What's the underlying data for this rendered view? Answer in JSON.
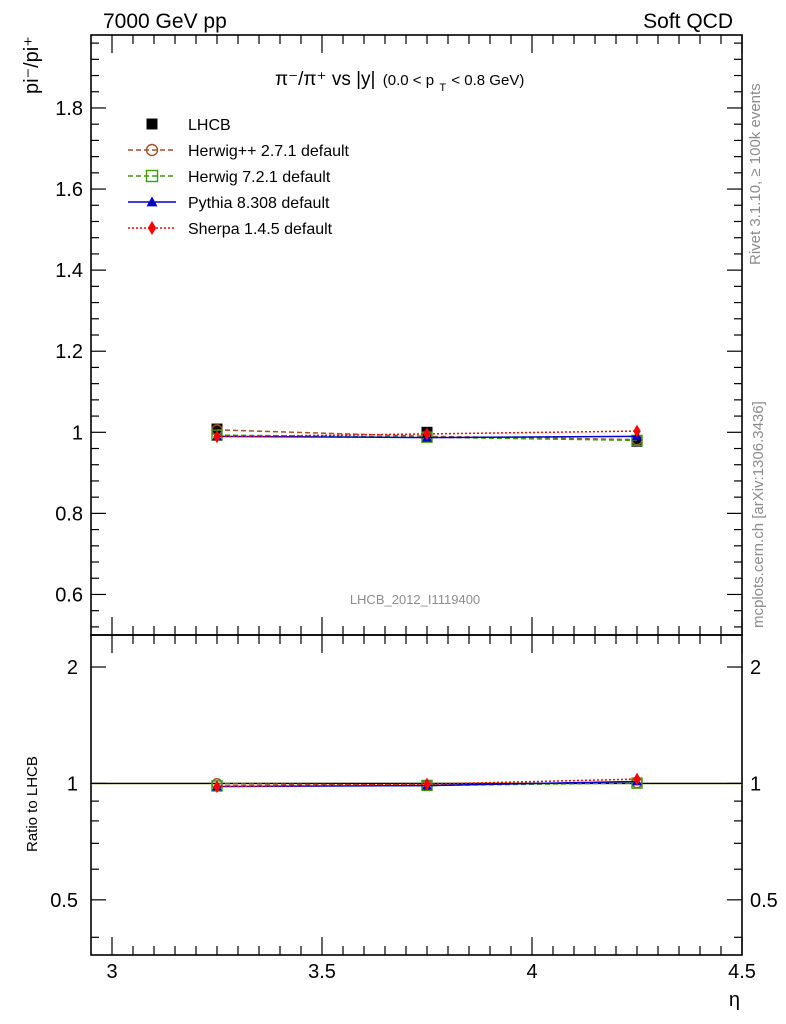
{
  "header": {
    "left": "7000 GeV pp",
    "right": "Soft QCD"
  },
  "side_labels": {
    "top": "Rivet 3.1.10, ≥ 100k events",
    "bottom": "mcplots.cern.ch [arXiv:1306.3436]"
  },
  "watermark": "LHCB_2012_I1119400",
  "legend": [
    {
      "label": "LHCB",
      "color": "#000000",
      "marker": "square-filled",
      "dash": ""
    },
    {
      "label": "Herwig++ 2.7.1 default",
      "color": "#a0522d",
      "marker": "circle-open",
      "dash": "5,3"
    },
    {
      "label": "Herwig 7.2.1 default",
      "color": "#3d9912",
      "marker": "square-open",
      "dash": "5,3"
    },
    {
      "label": "Pythia 8.308 default",
      "color": "#0000cc",
      "marker": "triangle-filled",
      "dash": ""
    },
    {
      "label": "Sherpa 1.4.5 default",
      "color": "#ff0000",
      "marker": "diamond-filled",
      "dash": "2,2"
    }
  ],
  "chart_data": [
    {
      "type": "line",
      "title_parts": {
        "main": "π⁻/π⁺ vs |y|",
        "cut_open": "(0.0 < p",
        "cut_sub": "T",
        "cut_close": " < 0.8 GeV)"
      },
      "ylabel": "pi⁻/pi⁺",
      "xlabel": "η",
      "xlim": [
        2.95,
        4.5
      ],
      "ylim": [
        0.5,
        1.98
      ],
      "yticks": [
        0.6,
        0.8,
        1.0,
        1.2,
        1.4,
        1.6,
        1.8
      ],
      "ytick_labels": [
        "0.6",
        "0.8",
        "1",
        "1.2",
        "1.4",
        "1.6",
        "1.8"
      ],
      "x": [
        3.25,
        3.75,
        4.25
      ],
      "series": [
        {
          "name": "LHCB",
          "values": [
            1.008,
            1.0,
            0.978
          ]
        },
        {
          "name": "Herwig++ 2.7.1 default",
          "values": [
            1.006,
            0.99,
            0.982
          ]
        },
        {
          "name": "Herwig 7.2.1 default",
          "values": [
            0.993,
            0.988,
            0.98
          ]
        },
        {
          "name": "Pythia 8.308 default",
          "values": [
            0.99,
            0.987,
            0.99
          ]
        },
        {
          "name": "Sherpa 1.4.5 default",
          "values": [
            0.989,
            0.996,
            1.003
          ]
        }
      ]
    },
    {
      "type": "line",
      "ylabel": "Ratio to LHCB",
      "xlabel": "η",
      "xlim": [
        2.95,
        4.5
      ],
      "ylim": [
        0.36,
        2.42
      ],
      "yscale": "log",
      "yticks": [
        0.5,
        1,
        2
      ],
      "ytick_labels": [
        "0.5",
        "1",
        "2"
      ],
      "xticks": [
        3,
        3.5,
        4,
        4.5
      ],
      "xtick_labels": [
        "3",
        "3.5",
        "4",
        "4.5"
      ],
      "x": [
        3.25,
        3.75,
        4.25
      ],
      "band_color": "#ccff66",
      "series": [
        {
          "name": "Herwig++ 2.7.1 default",
          "values": [
            0.998,
            0.99,
            1.004
          ]
        },
        {
          "name": "Herwig 7.2.1 default",
          "values": [
            0.985,
            0.988,
            1.002
          ]
        },
        {
          "name": "Pythia 8.308 default",
          "values": [
            0.982,
            0.987,
            1.012
          ]
        },
        {
          "name": "Sherpa 1.4.5 default",
          "values": [
            0.981,
            0.996,
            1.026
          ]
        }
      ]
    }
  ]
}
